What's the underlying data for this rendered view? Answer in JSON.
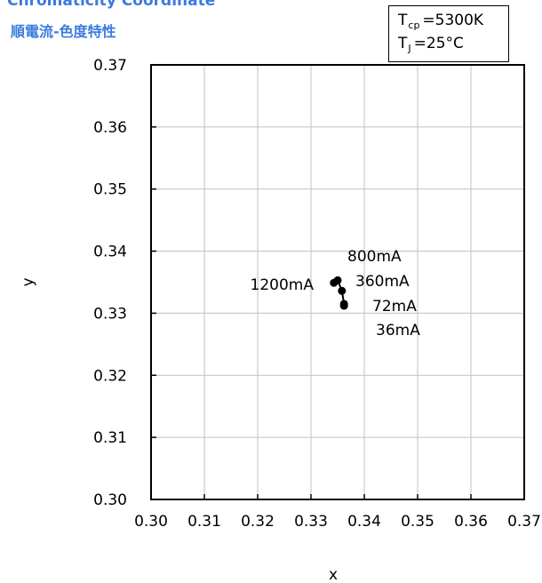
{
  "header": {
    "title_en": "Chromaticity Coordinate",
    "title_zh": "順電流-色度特性"
  },
  "conditions": {
    "tcp_symbol": "T",
    "tcp_sub": "cp",
    "tcp_value": "=5300K",
    "tj_symbol": "T",
    "tj_sub": "J",
    "tj_value": "=25°C"
  },
  "colors": {
    "accent": "#3b7be0",
    "line": "#000000",
    "grid": "#c0c0c0"
  },
  "chart_data": {
    "type": "scatter",
    "xlabel": "x",
    "ylabel": "y",
    "xlim": [
      0.3,
      0.37
    ],
    "ylim": [
      0.3,
      0.37
    ],
    "x_ticks": [
      "0.30",
      "0.31",
      "0.32",
      "0.33",
      "0.34",
      "0.35",
      "0.36",
      "0.37"
    ],
    "y_ticks": [
      "0.30",
      "0.31",
      "0.32",
      "0.33",
      "0.34",
      "0.35",
      "0.36",
      "0.37"
    ],
    "grid": true,
    "points": [
      {
        "label": "36mA",
        "x": 0.3362,
        "y": 0.3312
      },
      {
        "label": "72mA",
        "x": 0.3362,
        "y": 0.3315
      },
      {
        "label": "360mA",
        "x": 0.3358,
        "y": 0.3336
      },
      {
        "label": "800mA",
        "x": 0.335,
        "y": 0.3353
      },
      {
        "label": "1200mA",
        "x": 0.3343,
        "y": 0.3349
      }
    ]
  }
}
